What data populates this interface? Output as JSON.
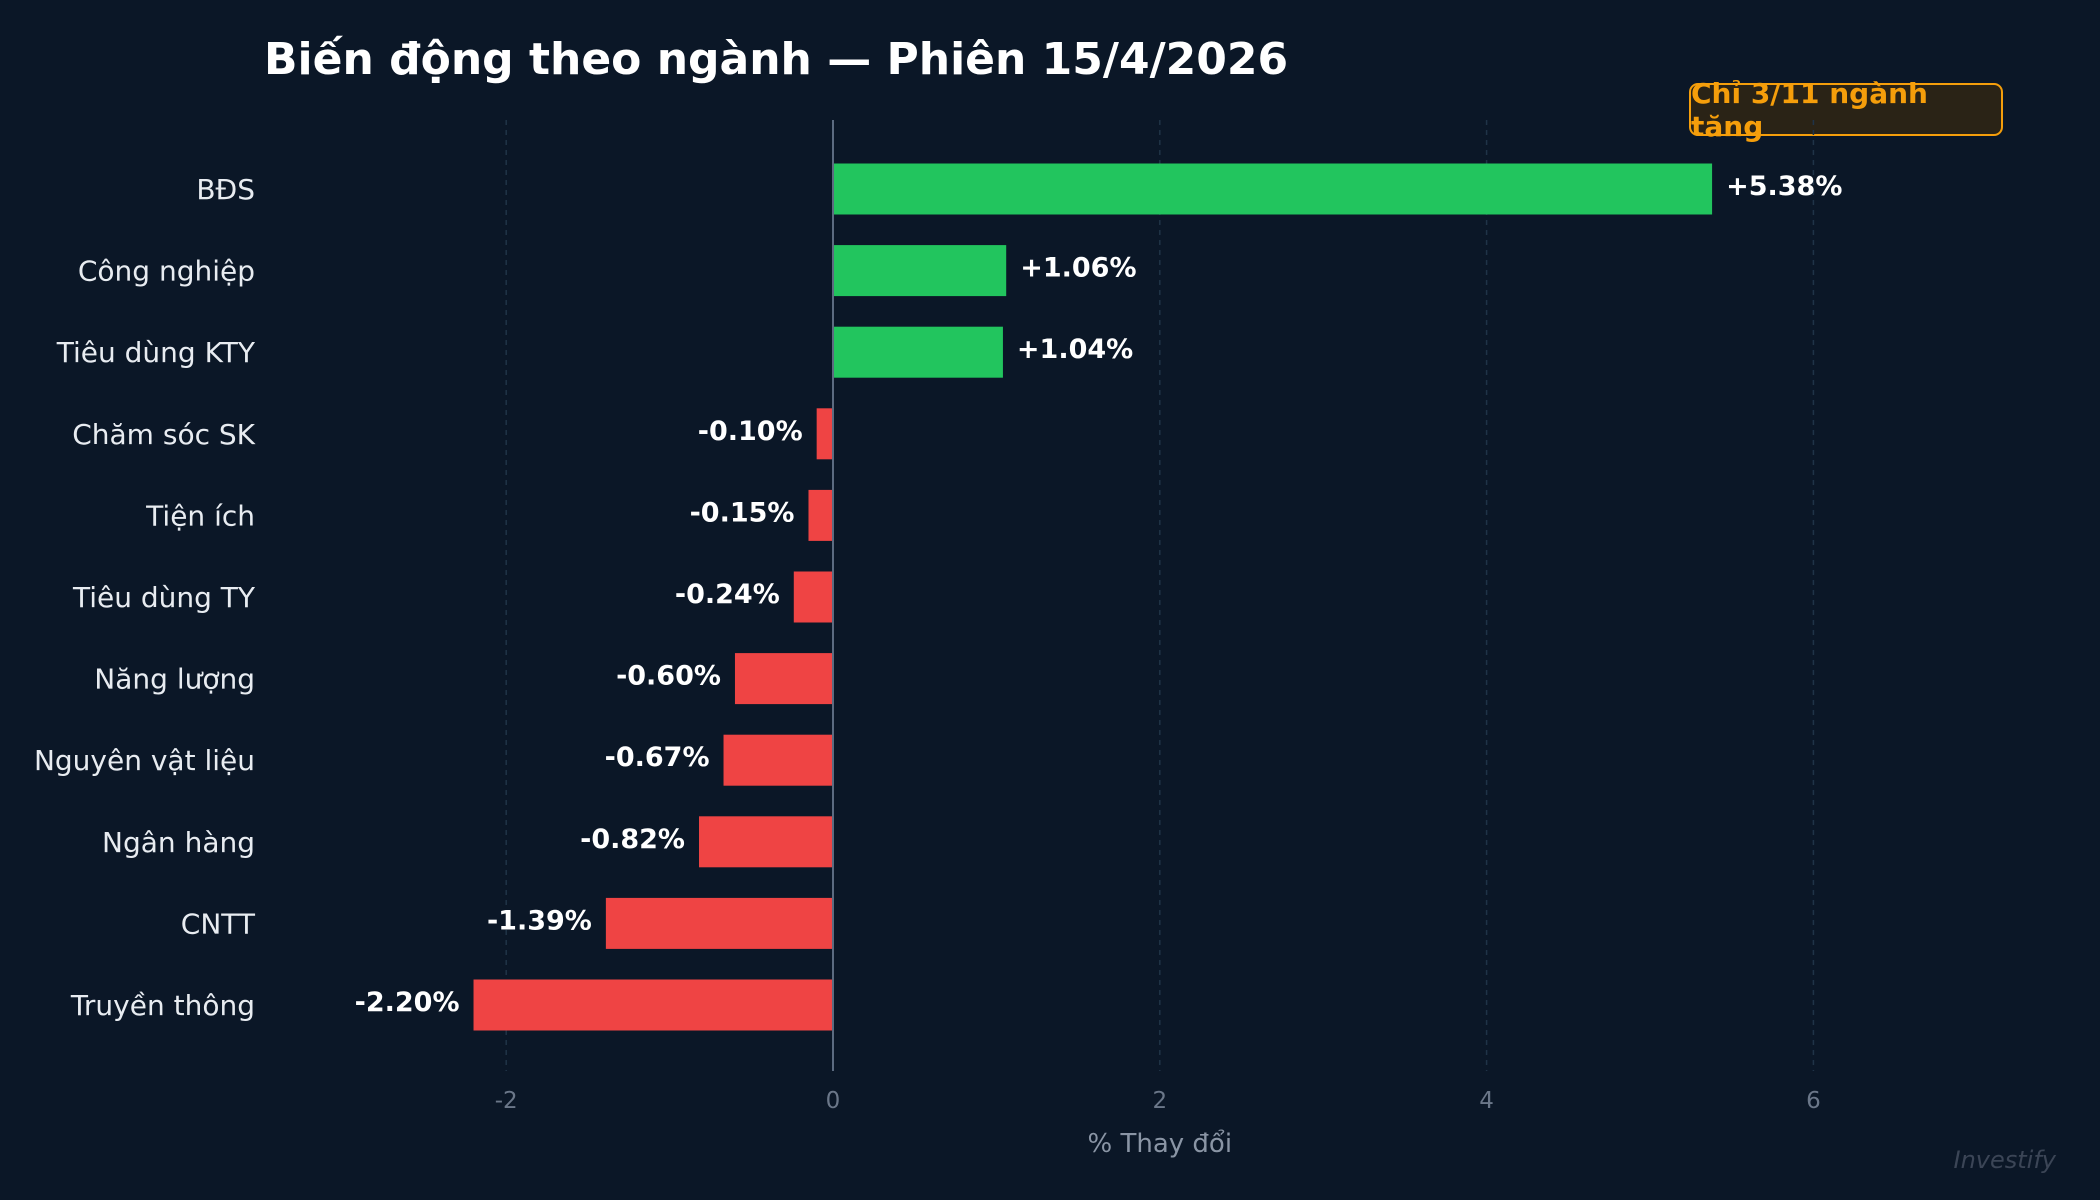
{
  "chart_data": {
    "type": "bar",
    "orientation": "horizontal",
    "title": "Biến động theo ngành — Phiên 15/4/2026",
    "annotation": "Chỉ 3/11 ngành tăng",
    "xlabel": "% Thay đổi",
    "ylabel": "",
    "xlim": [
      -3,
      7.3
    ],
    "xticks": [
      -2,
      0,
      2,
      4,
      6
    ],
    "grid": "vertical dashed",
    "categories": [
      "BĐS",
      "Công nghiệp",
      "Tiêu dùng KTY",
      "Chăm sóc SK",
      "Tiện ích",
      "Tiêu dùng TY",
      "Năng lượng",
      "Nguyên vật liệu",
      "Ngân hàng",
      "CNTT",
      "Truyền thông"
    ],
    "values": [
      5.38,
      1.06,
      1.04,
      -0.1,
      -0.15,
      -0.24,
      -0.6,
      -0.67,
      -0.82,
      -1.39,
      -2.2
    ],
    "data_labels": [
      "+5.38%",
      "+1.06%",
      "+1.04%",
      "-0.10%",
      "-0.15%",
      "-0.24%",
      "-0.60%",
      "-0.67%",
      "-0.82%",
      "-1.39%",
      "-2.20%"
    ],
    "colors": {
      "positive": "#22c55e",
      "negative": "#ef4444",
      "background": "#0b1727",
      "annotation": "#f59e0b"
    }
  },
  "watermark": "Investify"
}
